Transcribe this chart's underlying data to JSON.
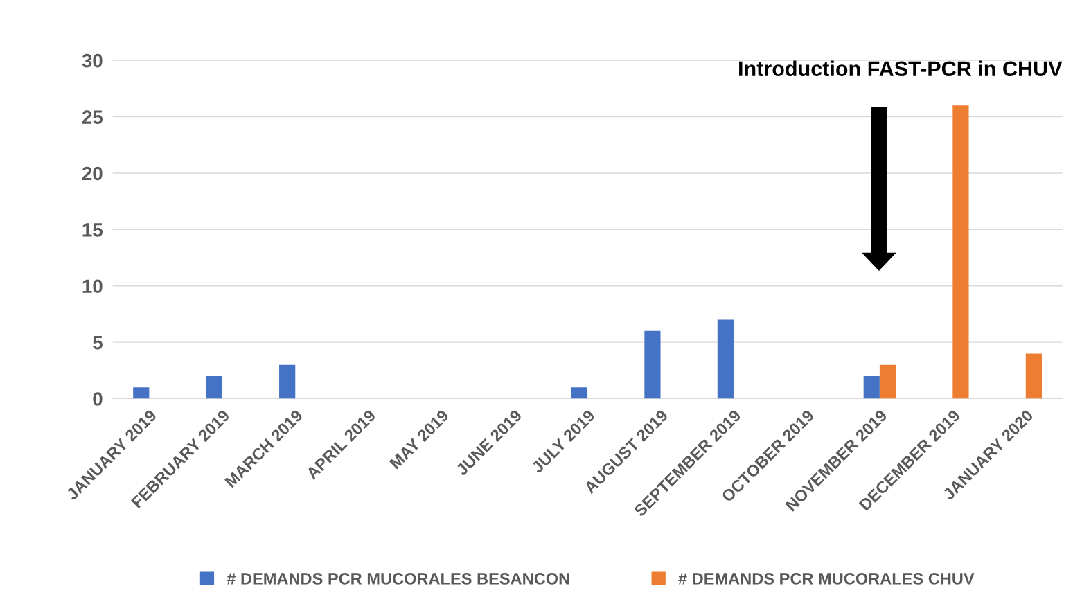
{
  "chart_data": {
    "type": "bar",
    "categories": [
      "JANUARY 2019",
      "FEBRUARY 2019",
      "MARCH 2019",
      "APRIL 2019",
      "MAY 2019",
      "JUNE 2019",
      "JULY 2019",
      "AUGUST 2019",
      "SEPTEMBER 2019",
      "OCTOBER 2019",
      "NOVEMBER 2019",
      "DECEMBER 2019",
      "JANUARY 2020"
    ],
    "series": [
      {
        "name": "# DEMANDS PCR MUCORALES BESANCON",
        "color": "#4472c4",
        "values": [
          1,
          2,
          3,
          null,
          null,
          null,
          1,
          6,
          7,
          null,
          2,
          null,
          null
        ]
      },
      {
        "name": "# DEMANDS PCR MUCORALES CHUV",
        "color": "#ed7d31",
        "values": [
          null,
          null,
          null,
          null,
          null,
          null,
          null,
          null,
          null,
          null,
          3,
          26,
          4
        ]
      }
    ],
    "ylim": [
      0,
      30
    ],
    "yticks": [
      0,
      5,
      10,
      15,
      20,
      25,
      30
    ],
    "grid": "y",
    "legend": "bottom",
    "annotations": [
      "Introduction FAST-PCR in CHUV"
    ]
  }
}
